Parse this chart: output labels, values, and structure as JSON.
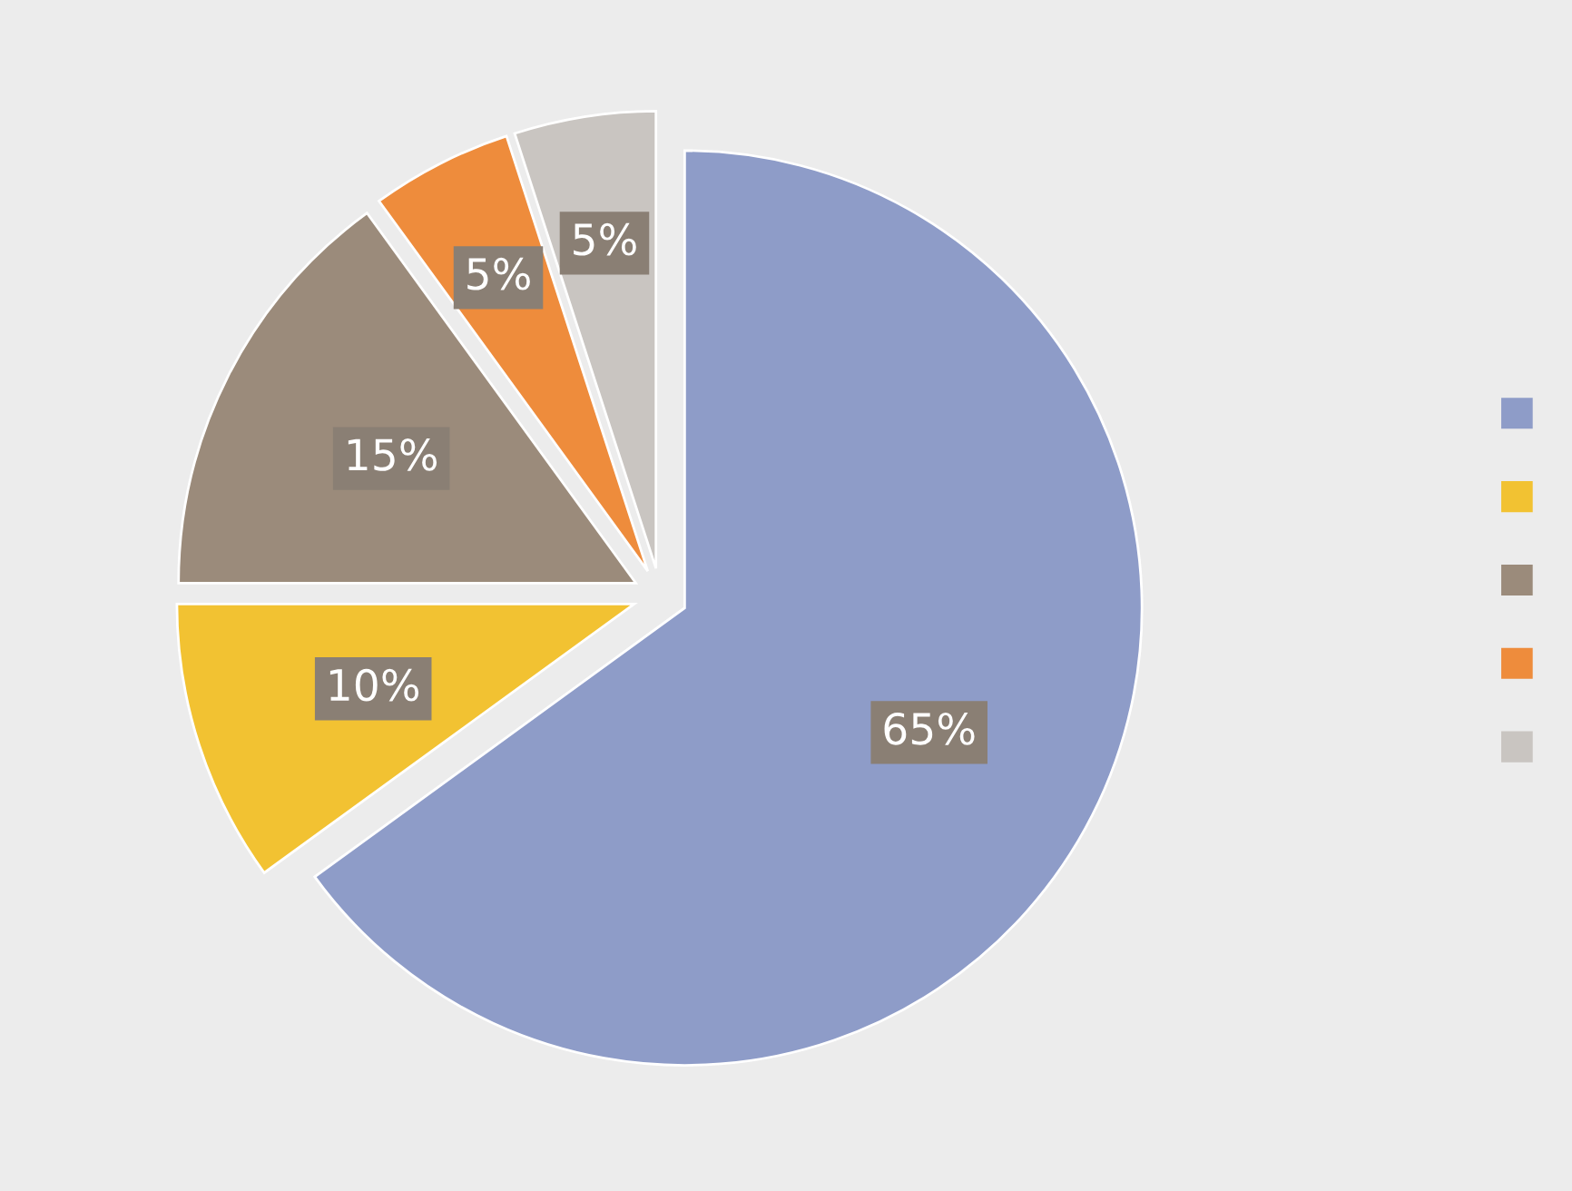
{
  "chart_data": {
    "type": "pie",
    "categories": [
      null,
      null,
      null,
      null,
      null
    ],
    "values": [
      65,
      10,
      15,
      5,
      5
    ],
    "value_labels": [
      "65%",
      "10%",
      "15%",
      "5%",
      "5%"
    ],
    "colors": [
      "#8e9cc8",
      "#f2c232",
      "#9b8b7b",
      "#ee8c3c",
      "#c9c5c1"
    ]
  }
}
